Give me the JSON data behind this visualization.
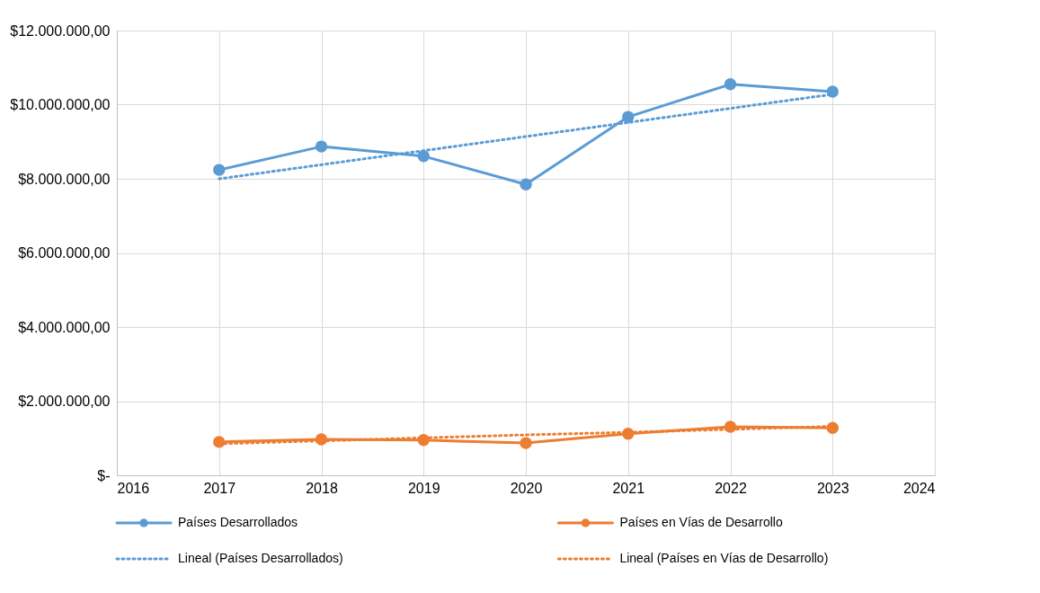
{
  "chart_data": {
    "type": "line",
    "x": [
      2017,
      2018,
      2019,
      2020,
      2021,
      2022,
      2023
    ],
    "series": [
      {
        "name": "Países Desarrollados",
        "color": "#5b9bd5",
        "values": [
          8240000,
          8870000,
          8610000,
          7850000,
          9670000,
          10550000,
          10350000
        ],
        "marker": "circle",
        "line_style": "solid"
      },
      {
        "name": "Países en Vías de Desarrollo",
        "color": "#ed7d31",
        "values": [
          900000,
          970000,
          950000,
          870000,
          1120000,
          1310000,
          1280000
        ],
        "marker": "circle",
        "line_style": "solid"
      },
      {
        "name": "Lineal (Países Desarrollados)",
        "color": "#5b9bd5",
        "type": "line",
        "values": [
          8000000,
          8380000,
          8760000,
          9140000,
          9520000,
          9900000,
          10280000
        ],
        "marker": "none",
        "line_style": "dotted"
      },
      {
        "name": "Lineal (Países en Vías de Desarrollo)",
        "color": "#ed7d31",
        "type": "line",
        "values": [
          850000,
          930000,
          1010000,
          1090000,
          1160000,
          1240000,
          1320000
        ],
        "marker": "none",
        "line_style": "dotted"
      }
    ],
    "xlim": [
      2016,
      2024
    ],
    "xticks": [
      2016,
      2017,
      2018,
      2019,
      2020,
      2021,
      2022,
      2023,
      2024
    ],
    "ylim": [
      0,
      12000000
    ],
    "yticks": [
      {
        "value": 0,
        "label": "$-"
      },
      {
        "value": 2000000,
        "label": "$2.000.000,00"
      },
      {
        "value": 4000000,
        "label": "$4.000.000,00"
      },
      {
        "value": 6000000,
        "label": "$6.000.000,00"
      },
      {
        "value": 8000000,
        "label": "$8.000.000,00"
      },
      {
        "value": 10000000,
        "label": "$10.000.000,00"
      },
      {
        "value": 12000000,
        "label": "$12.000.000,00"
      }
    ],
    "grid": true,
    "legend": "bottom"
  }
}
